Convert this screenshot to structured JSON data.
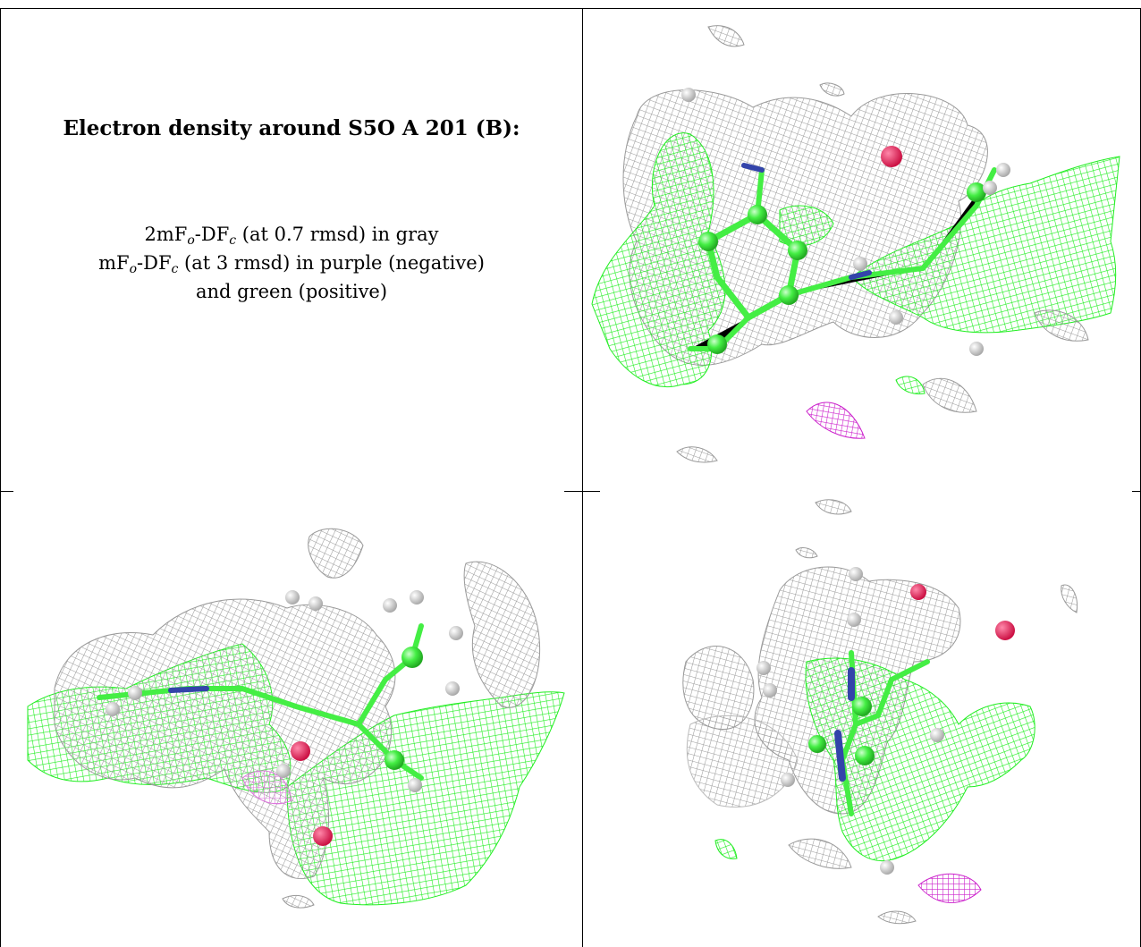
{
  "heading": "Electron density around S5O A 201 (B):",
  "legend": {
    "line1_pre": "2mF",
    "line1_sub1": "o",
    "line1_mid": "-DF",
    "line1_sub2": "c",
    "line1_post": " (at 0.7 rmsd) in gray",
    "line2_pre": "mF",
    "line2_sub1": "o",
    "line2_mid": "-DF",
    "line2_sub2": "c",
    "line2_post": " (at 3 rmsd) in purple (negative)",
    "line3": "and green (positive)"
  },
  "colors": {
    "gray_mesh": "#9a9a9a",
    "green_mesh": "#22ee22",
    "purple_mesh": "#cc22cc",
    "carbon": "#44ee44",
    "nitrogen": "#3344aa",
    "oxygen": "#dd2255",
    "hydrogen": "#dddddd"
  },
  "panels": [
    {
      "view": "top-right"
    },
    {
      "view": "bottom-left"
    },
    {
      "view": "bottom-right"
    }
  ]
}
